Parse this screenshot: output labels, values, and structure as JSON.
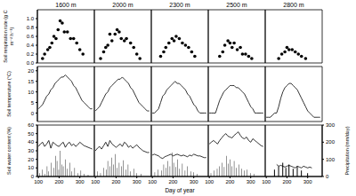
{
  "chart_data": {
    "type": "panel_grid",
    "columns": [
      "1600 m",
      "2000 m",
      "2300 m",
      "2500 m",
      "2800 m"
    ],
    "xlabel": "Day of year",
    "xlim": [
      95,
      370
    ],
    "xticks": [
      100,
      200,
      300
    ],
    "rows": [
      {
        "type": "scatter",
        "ylabel": "Soil respiration rate (g C m⁻² h⁻¹)",
        "ylim": [
          0,
          1.2
        ],
        "yticks": [
          {
            "value": 0,
            "label": "0.0"
          },
          0.2,
          0.4,
          0.6,
          0.8,
          {
            "value": 1,
            "label": "1.0"
          }
        ],
        "color": "#000000",
        "marker": "circle",
        "series": [
          {
            "x": [
              120,
              130,
              145,
              155,
              165,
              175,
              185,
              195,
              205,
              215,
              225,
              240,
              255,
              270,
              285,
              300,
              315
            ],
            "values": [
              0.1,
              0.2,
              0.3,
              0.35,
              0.45,
              0.6,
              0.55,
              0.75,
              0.95,
              0.9,
              0.7,
              0.7,
              0.55,
              0.55,
              0.45,
              0.3,
              0.2
            ]
          },
          {
            "x": [
              125,
              140,
              150,
              160,
              170,
              180,
              195,
              205,
              215,
              225,
              240,
              250,
              270,
              285,
              300,
              315
            ],
            "values": [
              0.1,
              0.25,
              0.35,
              0.4,
              0.65,
              0.5,
              0.65,
              0.75,
              0.7,
              0.55,
              0.5,
              0.55,
              0.45,
              0.35,
              0.2,
              0.1
            ]
          },
          {
            "x": [
              140,
              155,
              165,
              180,
              195,
              205,
              215,
              230,
              245,
              260,
              275,
              290,
              305
            ],
            "values": [
              0.15,
              0.25,
              0.35,
              0.45,
              0.55,
              0.5,
              0.6,
              0.55,
              0.45,
              0.4,
              0.35,
              0.25,
              0.15
            ]
          },
          {
            "x": [
              150,
              165,
              175,
              190,
              200,
              210,
              220,
              235,
              250,
              260,
              275,
              290,
              305
            ],
            "values": [
              0.15,
              0.25,
              0.4,
              0.5,
              0.45,
              0.35,
              0.45,
              0.3,
              0.35,
              0.2,
              0.2,
              0.15,
              0.1
            ]
          },
          {
            "x": [
              160,
              175,
              190,
              200,
              210,
              225,
              240,
              255,
              270,
              290
            ],
            "values": [
              0.1,
              0.2,
              0.25,
              0.35,
              0.3,
              0.3,
              0.25,
              0.2,
              0.15,
              0.1
            ]
          }
        ]
      },
      {
        "type": "line",
        "ylabel": "Soil temperature (°C)",
        "ylim": [
          -4,
          22
        ],
        "yticks": [
          0,
          5,
          10,
          15,
          20
        ],
        "color": "#000000",
        "series": [
          {
            "x": [
              100,
              110,
              120,
              130,
              140,
              150,
              160,
              170,
              180,
              190,
              200,
              210,
              220,
              230,
              240,
              250,
              260,
              270,
              280,
              290,
              300,
              310,
              320,
              330,
              340,
              350,
              360
            ],
            "values": [
              2,
              3,
              4,
              6,
              8,
              9,
              11,
              12,
              14,
              15,
              16,
              17,
              17,
              18,
              17,
              16,
              15,
              13,
              12,
              10,
              8,
              6,
              5,
              4,
              3,
              2,
              2
            ]
          },
          {
            "x": [
              100,
              110,
              120,
              130,
              140,
              150,
              160,
              170,
              180,
              190,
              200,
              210,
              220,
              230,
              240,
              250,
              260,
              270,
              280,
              290,
              300,
              310,
              320,
              330,
              340,
              350,
              360
            ],
            "values": [
              1,
              2,
              3,
              5,
              7,
              9,
              10,
              12,
              13,
              14,
              15,
              16,
              16,
              17,
              16,
              15,
              14,
              12,
              11,
              9,
              7,
              5,
              4,
              3,
              2,
              1,
              1
            ]
          },
          {
            "x": [
              100,
              110,
              120,
              130,
              140,
              150,
              160,
              170,
              180,
              190,
              200,
              210,
              220,
              230,
              240,
              250,
              260,
              270,
              280,
              290,
              300,
              310,
              320,
              330,
              340,
              350,
              360
            ],
            "values": [
              0,
              0,
              1,
              2,
              5,
              8,
              9,
              11,
              12,
              13,
              14,
              15,
              14,
              14,
              13,
              12,
              11,
              9,
              8,
              6,
              4,
              3,
              1,
              0,
              0,
              0,
              0
            ]
          },
          {
            "x": [
              100,
              110,
              120,
              130,
              140,
              150,
              160,
              170,
              180,
              190,
              200,
              210,
              220,
              230,
              240,
              250,
              260,
              270,
              280,
              290,
              300,
              310,
              320,
              330,
              340,
              350,
              360
            ],
            "values": [
              0,
              0,
              0,
              0,
              3,
              6,
              8,
              10,
              11,
              12,
              13,
              13,
              13,
              12,
              12,
              11,
              10,
              9,
              7,
              5,
              3,
              2,
              0,
              0,
              0,
              0,
              0
            ]
          },
          {
            "x": [
              100,
              110,
              120,
              130,
              140,
              150,
              160,
              170,
              180,
              190,
              200,
              210,
              220,
              230,
              240,
              250,
              260,
              270,
              280,
              290,
              300,
              310,
              320,
              330,
              340,
              350,
              360
            ],
            "values": [
              -2,
              -2,
              -2,
              -1,
              0,
              0,
              3,
              7,
              10,
              12,
              13,
              14,
              14,
              13,
              12,
              11,
              9,
              7,
              5,
              3,
              1,
              0,
              -1,
              -2,
              -2,
              -2,
              -2
            ]
          }
        ]
      },
      {
        "type": "line",
        "ylabel": "Soil water content (%)",
        "ylim": [
          0,
          60
        ],
        "yticks": [
          0,
          10,
          20,
          30,
          40,
          50,
          60
        ],
        "y2label": "Precipitation (mm/day)",
        "y2lim": [
          0,
          300
        ],
        "y2ticks": [
          0,
          100,
          200,
          300
        ],
        "color": "#000000",
        "series": [
          {
            "x": [
              100,
              110,
              120,
              130,
              140,
              150,
              160,
              170,
              180,
              190,
              200,
              210,
              220,
              230,
              240,
              250,
              260,
              270,
              280,
              290,
              300,
              310,
              320,
              330,
              340,
              350,
              360
            ],
            "values": [
              35,
              38,
              40,
              35,
              38,
              42,
              33,
              40,
              38,
              36,
              35,
              38,
              40,
              34,
              38,
              40,
              36,
              38,
              35,
              37,
              40,
              38,
              36,
              35,
              34,
              33,
              32
            ]
          },
          {
            "x": [
              100,
              110,
              120,
              130,
              140,
              150,
              160,
              170,
              180,
              190,
              200,
              210,
              220,
              230,
              240,
              250,
              260,
              270,
              280,
              290,
              300,
              310,
              320,
              330,
              340,
              350,
              360
            ],
            "values": [
              30,
              33,
              35,
              32,
              36,
              40,
              35,
              42,
              38,
              36,
              34,
              36,
              38,
              35,
              40,
              38,
              34,
              36,
              33,
              35,
              37,
              34,
              32,
              30,
              29,
              28,
              28
            ]
          },
          {
            "x": [
              100,
              110,
              120,
              130,
              140,
              150,
              160,
              170,
              180,
              190,
              200,
              210,
              220,
              230,
              240,
              250,
              260,
              270,
              280,
              290,
              300,
              310,
              320,
              330,
              340,
              350,
              360
            ],
            "values": [
              25,
              26,
              25,
              24,
              22,
              21,
              23,
              24,
              25,
              26,
              24,
              25,
              26,
              25,
              24,
              25,
              24,
              23,
              25,
              24,
              26,
              25,
              24,
              24,
              23,
              22,
              22
            ]
          },
          {
            "x": [
              100,
              110,
              120,
              130,
              140,
              150,
              160,
              170,
              180,
              190,
              200,
              210,
              220,
              230,
              240,
              250,
              260,
              270,
              280,
              290,
              300,
              310,
              320,
              330,
              340,
              350,
              360
            ],
            "values": [
              38,
              40,
              42,
              40,
              38,
              42,
              45,
              48,
              50,
              47,
              46,
              45,
              48,
              50,
              52,
              48,
              45,
              44,
              46,
              42,
              40,
              44,
              42,
              40,
              38,
              36,
              35
            ]
          },
          {
            "x": [
              100,
              110,
              120,
              130,
              140,
              150,
              160,
              170,
              180,
              190,
              200,
              210,
              220,
              230,
              240,
              250,
              260,
              270,
              280,
              290,
              300,
              310,
              320,
              330,
              340,
              350,
              360
            ],
            "values": [
              null,
              null,
              null,
              null,
              null,
              14,
              12,
              13,
              12,
              11,
              12,
              13,
              12,
              11,
              10,
              12,
              11,
              10,
              12,
              11,
              10,
              11,
              10,
              null,
              null,
              null,
              null
            ]
          }
        ],
        "y2series": [
          {
            "type": "bar",
            "axis": "y2",
            "color": "#000000",
            "x": [
              105,
              118,
              130,
              142,
              150,
              163,
              175,
              182,
              190,
              198,
              205,
              213,
              220,
              230,
              240,
              252,
              260,
              275,
              290,
              305,
              320,
              340
            ],
            "values": [
              20,
              40,
              15,
              60,
              30,
              80,
              50,
              120,
              90,
              40,
              150,
              70,
              60,
              100,
              45,
              80,
              30,
              50,
              20,
              35,
              15,
              10
            ]
          },
          {
            "type": "bar",
            "axis": "y2",
            "color": "#000000",
            "x": [
              110,
              125,
              140,
              152,
              160,
              170,
              180,
              188,
              196,
              205,
              215,
              225,
              235,
              248,
              258,
              270,
              285,
              300,
              320
            ],
            "values": [
              30,
              20,
              50,
              40,
              90,
              60,
              110,
              70,
              130,
              50,
              80,
              60,
              95,
              40,
              70,
              30,
              45,
              20,
              15
            ]
          },
          {
            "type": "bar",
            "axis": "y2",
            "color": "#000000",
            "x": [
              112,
              128,
              145,
              155,
              165,
              175,
              185,
              195,
              203,
              212,
              222,
              232,
              245,
              258,
              270,
              285,
              300,
              315
            ],
            "values": [
              25,
              40,
              35,
              70,
              50,
              90,
              60,
              140,
              80,
              55,
              100,
              45,
              75,
              35,
              60,
              30,
              25,
              15
            ]
          },
          {
            "type": "bar",
            "axis": "y2",
            "color": "#000000",
            "x": [
              108,
              122,
              138,
              150,
              162,
              172,
              183,
              192,
              200,
              210,
              220,
              230,
              242,
              255,
              268,
              282,
              298,
              315
            ],
            "values": [
              20,
              35,
              45,
              60,
              80,
              55,
              120,
              75,
              100,
              60,
              90,
              50,
              70,
              45,
              35,
              40,
              20,
              15
            ]
          },
          {
            "type": "bar",
            "axis": "y2",
            "color": "#000000",
            "x": [
              140,
              160,
              180,
              195,
              210,
              230,
              250,
              270,
              300
            ],
            "values": [
              40,
              60,
              80,
              50,
              70,
              45,
              60,
              35,
              20
            ]
          }
        ]
      }
    ]
  }
}
